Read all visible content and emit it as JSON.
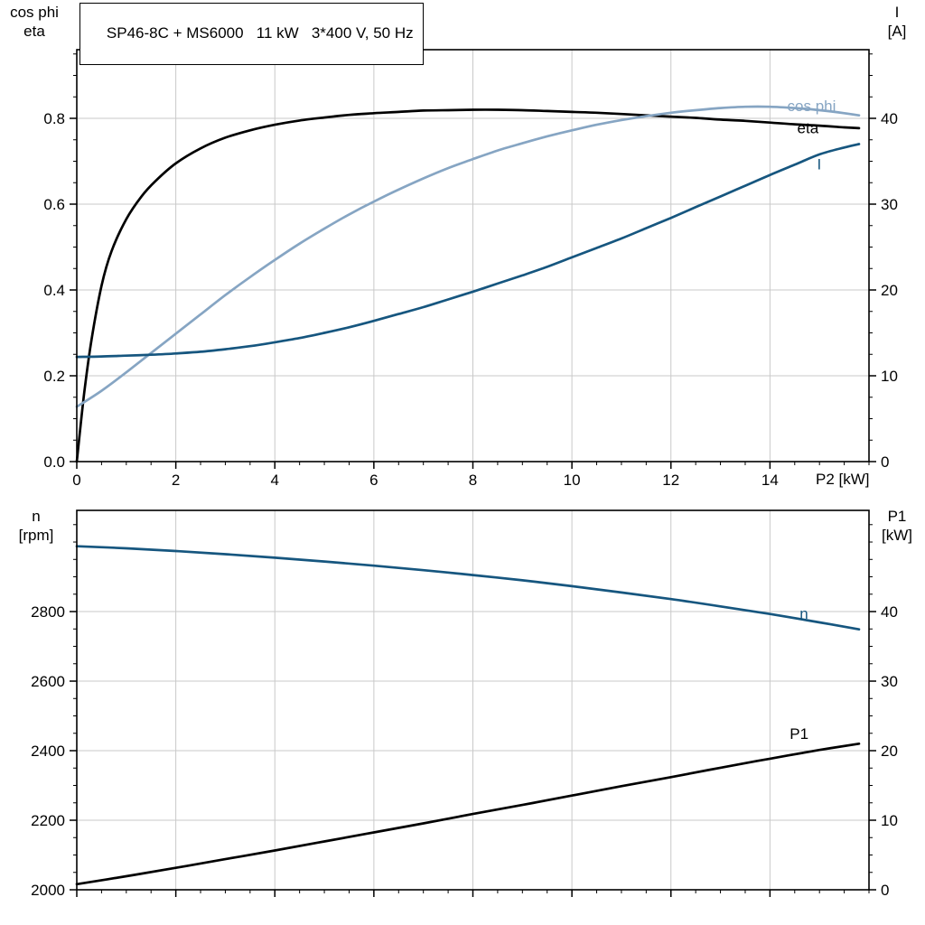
{
  "title": "SP46-8C + MS6000   11 kW   3*400 V, 50 Hz",
  "colors": {
    "black": "#000000",
    "light_blue": "#86a5c3",
    "dark_blue": "#16567f",
    "grid": "#c9c9c9",
    "frame": "#000000",
    "background": "#ffffff"
  },
  "chart_data": [
    {
      "type": "line",
      "title": "SP46-8C + MS6000   11 kW   3*400 V, 50 Hz",
      "x_axis": {
        "label": "P2 [kW]",
        "min": 0,
        "max": 16,
        "ticks": [
          0,
          2,
          4,
          6,
          8,
          10,
          12,
          14
        ],
        "tick_labels": [
          "0",
          "2",
          "4",
          "6",
          "8",
          "10",
          "12",
          "14"
        ],
        "minor_step": 0.5,
        "grid": [
          2,
          4,
          6,
          8,
          10,
          12,
          14
        ]
      },
      "left_axis": {
        "name_lines": [
          "cos phi",
          "eta"
        ],
        "min": 0,
        "max": 0.96,
        "ticks": [
          0,
          0.2,
          0.4,
          0.6,
          0.8
        ],
        "tick_labels": [
          "0.0",
          "0.2",
          "0.4",
          "0.6",
          "0.8"
        ],
        "minor_step": 0.05,
        "grid": [
          0.2,
          0.4,
          0.6,
          0.8
        ]
      },
      "right_axis": {
        "name_lines": [
          "I",
          "[A]"
        ],
        "min": 0,
        "max": 48,
        "ticks": [
          0,
          10,
          20,
          30,
          40
        ],
        "tick_labels": [
          "0",
          "10",
          "20",
          "30",
          "40"
        ],
        "minor_step": 2.5
      },
      "series": [
        {
          "name": "eta",
          "axis": "left",
          "color": "#000000",
          "label": {
            "text": "eta",
            "x": 14.55,
            "y": 0.778
          },
          "points": [
            [
              0,
              0
            ],
            [
              0.15,
              0.16
            ],
            [
              0.3,
              0.285
            ],
            [
              0.5,
              0.41
            ],
            [
              0.7,
              0.49
            ],
            [
              1,
              0.565
            ],
            [
              1.3,
              0.617
            ],
            [
              1.6,
              0.655
            ],
            [
              2,
              0.695
            ],
            [
              2.5,
              0.73
            ],
            [
              3,
              0.755
            ],
            [
              3.5,
              0.772
            ],
            [
              4,
              0.785
            ],
            [
              4.5,
              0.795
            ],
            [
              5,
              0.802
            ],
            [
              5.5,
              0.808
            ],
            [
              6,
              0.812
            ],
            [
              6.5,
              0.815
            ],
            [
              7,
              0.818
            ],
            [
              7.5,
              0.819
            ],
            [
              8,
              0.82
            ],
            [
              8.5,
              0.82
            ],
            [
              9,
              0.819
            ],
            [
              9.5,
              0.817
            ],
            [
              10,
              0.815
            ],
            [
              10.5,
              0.813
            ],
            [
              11,
              0.81
            ],
            [
              11.5,
              0.807
            ],
            [
              12,
              0.804
            ],
            [
              12.5,
              0.801
            ],
            [
              13,
              0.797
            ],
            [
              13.5,
              0.794
            ],
            [
              14,
              0.79
            ],
            [
              14.5,
              0.786
            ],
            [
              15,
              0.783
            ],
            [
              15.5,
              0.779
            ],
            [
              15.8,
              0.777
            ]
          ]
        },
        {
          "name": "cos phi",
          "axis": "left",
          "color": "#86a5c3",
          "label": {
            "text": "cos phi",
            "x": 14.35,
            "y": 0.83
          },
          "points": [
            [
              0,
              0.128
            ],
            [
              0.5,
              0.165
            ],
            [
              1,
              0.208
            ],
            [
              1.5,
              0.253
            ],
            [
              2,
              0.298
            ],
            [
              2.5,
              0.343
            ],
            [
              3,
              0.388
            ],
            [
              3.5,
              0.43
            ],
            [
              4,
              0.47
            ],
            [
              4.5,
              0.508
            ],
            [
              5,
              0.543
            ],
            [
              5.5,
              0.576
            ],
            [
              6,
              0.606
            ],
            [
              6.5,
              0.634
            ],
            [
              7,
              0.66
            ],
            [
              7.5,
              0.684
            ],
            [
              8,
              0.705
            ],
            [
              8.5,
              0.725
            ],
            [
              9,
              0.742
            ],
            [
              9.5,
              0.758
            ],
            [
              10,
              0.772
            ],
            [
              10.5,
              0.785
            ],
            [
              11,
              0.796
            ],
            [
              11.5,
              0.805
            ],
            [
              12,
              0.813
            ],
            [
              12.5,
              0.819
            ],
            [
              13,
              0.824
            ],
            [
              13.5,
              0.827
            ],
            [
              14,
              0.827
            ],
            [
              14.5,
              0.824
            ],
            [
              15,
              0.819
            ],
            [
              15.5,
              0.812
            ],
            [
              15.8,
              0.807
            ]
          ]
        },
        {
          "name": "I",
          "axis": "right",
          "color": "#16567f",
          "label": {
            "text": "I",
            "x": 14.95,
            "y": 34.7
          },
          "points": [
            [
              0,
              12.2
            ],
            [
              0.5,
              12.25
            ],
            [
              1,
              12.35
            ],
            [
              1.5,
              12.45
            ],
            [
              2,
              12.6
            ],
            [
              2.5,
              12.8
            ],
            [
              3,
              13.1
            ],
            [
              3.5,
              13.45
            ],
            [
              4,
              13.9
            ],
            [
              4.5,
              14.4
            ],
            [
              5,
              15.0
            ],
            [
              5.5,
              15.65
            ],
            [
              6,
              16.4
            ],
            [
              6.5,
              17.2
            ],
            [
              7,
              18.0
            ],
            [
              7.5,
              18.9
            ],
            [
              8,
              19.8
            ],
            [
              8.5,
              20.75
            ],
            [
              9,
              21.7
            ],
            [
              9.5,
              22.7
            ],
            [
              10,
              23.8
            ],
            [
              10.5,
              24.9
            ],
            [
              11,
              26.0
            ],
            [
              11.5,
              27.2
            ],
            [
              12,
              28.4
            ],
            [
              12.5,
              29.65
            ],
            [
              13,
              30.9
            ],
            [
              13.5,
              32.15
            ],
            [
              14,
              33.4
            ],
            [
              14.5,
              34.6
            ],
            [
              15,
              35.8
            ],
            [
              15.5,
              36.6
            ],
            [
              15.8,
              37.0
            ]
          ]
        }
      ]
    },
    {
      "type": "line",
      "x_axis": {
        "label": "",
        "min": 0,
        "max": 16,
        "ticks": [
          0,
          2,
          4,
          6,
          8,
          10,
          12,
          14
        ],
        "tick_labels": [],
        "minor_step": 0.5,
        "grid": [
          2,
          4,
          6,
          8,
          10,
          12,
          14
        ]
      },
      "left_axis": {
        "name_lines": [
          "n",
          "[rpm]"
        ],
        "min": 2000,
        "max": 3091,
        "ticks": [
          2000,
          2200,
          2400,
          2600,
          2800
        ],
        "tick_labels": [
          "2000",
          "2200",
          "2400",
          "2600",
          "2800"
        ],
        "minor_step": 50,
        "grid": [
          2200,
          2400,
          2600,
          2800
        ]
      },
      "right_axis": {
        "name_lines": [
          "P1",
          "[kW]"
        ],
        "min": 0,
        "max": 54.55,
        "ticks": [
          0,
          10,
          20,
          30,
          40
        ],
        "tick_labels": [
          "0",
          "10",
          "20",
          "30",
          "40"
        ],
        "minor_step": 2.5
      },
      "series": [
        {
          "name": "n",
          "axis": "left",
          "color": "#16567f",
          "label": {
            "text": "n",
            "x": 14.6,
            "y": 2795
          },
          "points": [
            [
              0,
              2988
            ],
            [
              1,
              2982
            ],
            [
              2,
              2974
            ],
            [
              3,
              2965
            ],
            [
              4,
              2955
            ],
            [
              5,
              2944
            ],
            [
              6,
              2932
            ],
            [
              7,
              2919
            ],
            [
              8,
              2905
            ],
            [
              9,
              2890
            ],
            [
              10,
              2873
            ],
            [
              11,
              2855
            ],
            [
              12,
              2836
            ],
            [
              13,
              2815
            ],
            [
              14,
              2793
            ],
            [
              15,
              2769
            ],
            [
              15.8,
              2749
            ]
          ]
        },
        {
          "name": "P1",
          "axis": "right",
          "color": "#000000",
          "label": {
            "text": "P1",
            "x": 14.4,
            "y": 22.5
          },
          "points": [
            [
              0,
              0.8
            ],
            [
              1,
              1.95
            ],
            [
              2,
              3.15
            ],
            [
              3,
              4.4
            ],
            [
              4,
              5.65
            ],
            [
              5,
              6.95
            ],
            [
              6,
              8.25
            ],
            [
              7,
              9.55
            ],
            [
              8,
              10.9
            ],
            [
              9,
              12.2
            ],
            [
              10,
              13.55
            ],
            [
              11,
              14.9
            ],
            [
              12,
              16.2
            ],
            [
              13,
              17.55
            ],
            [
              14,
              18.85
            ],
            [
              15,
              20.1
            ],
            [
              15.8,
              21.0
            ]
          ]
        }
      ]
    }
  ]
}
